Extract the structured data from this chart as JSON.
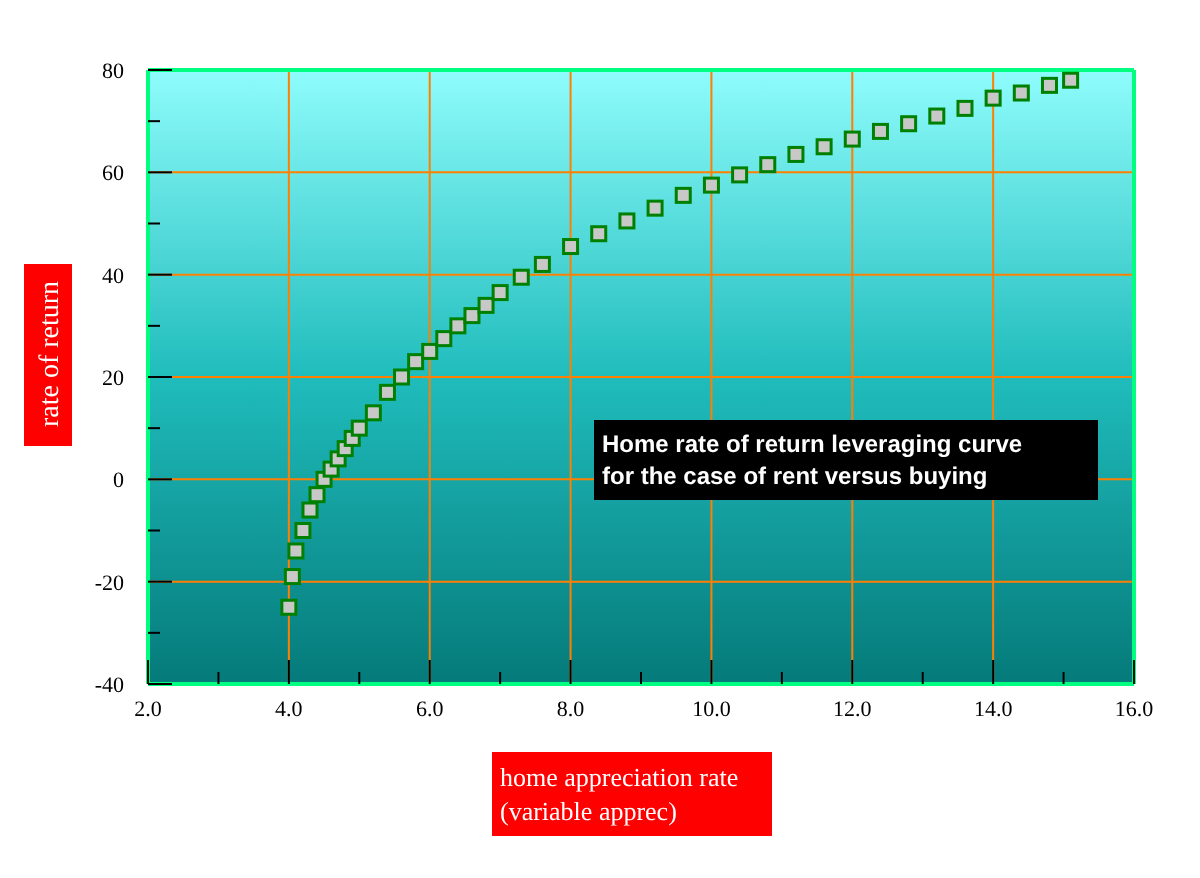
{
  "chart_data": {
    "type": "scatter",
    "xlabel": "home appreciation rate\n(variable apprec)",
    "ylabel": "rate of return",
    "annotations": [
      "Home rate of return leveraging curve\nfor the case of rent versus buying"
    ],
    "x": [
      4.0,
      4.05,
      4.1,
      4.2,
      4.3,
      4.4,
      4.5,
      4.6,
      4.7,
      4.8,
      4.9,
      5.0,
      5.2,
      5.4,
      5.6,
      5.8,
      6.0,
      6.2,
      6.4,
      6.6,
      6.8,
      7.0,
      7.3,
      7.6,
      8.0,
      8.4,
      8.8,
      9.2,
      9.6,
      10.0,
      10.4,
      10.8,
      11.2,
      11.6,
      12.0,
      12.4,
      12.8,
      13.2,
      13.6,
      14.0,
      14.4,
      14.8,
      15.1
    ],
    "series": [
      {
        "color": "#008000",
        "values": [
          -25,
          -19,
          -14,
          -10,
          -6,
          -3,
          0,
          2,
          4,
          6,
          8,
          10,
          13,
          17,
          20,
          23,
          25,
          27.5,
          30,
          32,
          34,
          36.5,
          39.5,
          42,
          45.5,
          48,
          50.5,
          53,
          55.5,
          57.5,
          59.5,
          61.5,
          63.5,
          65,
          66.5,
          68,
          69.5,
          71,
          72.5,
          74.5,
          75.5,
          77,
          78
        ]
      }
    ],
    "marker": "square",
    "grid": true,
    "xlim": [
      2,
      16
    ],
    "xticks": [
      {
        "value": 2,
        "label": "2.0"
      },
      {
        "value": 3,
        "label": null
      },
      {
        "value": 4,
        "label": "4.0"
      },
      {
        "value": 5,
        "label": null
      },
      {
        "value": 6,
        "label": "6.0"
      },
      {
        "value": 7,
        "label": null
      },
      {
        "value": 8,
        "label": "8.0"
      },
      {
        "value": 9,
        "label": null
      },
      {
        "value": 10,
        "label": "10.0"
      },
      {
        "value": 11,
        "label": null
      },
      {
        "value": 12,
        "label": "12.0"
      },
      {
        "value": 13,
        "label": null
      },
      {
        "value": 14,
        "label": "14.0"
      },
      {
        "value": 15,
        "label": null
      },
      {
        "value": 16,
        "label": "16.0"
      }
    ],
    "ylim": [
      -40,
      80
    ],
    "yticks": [
      -40,
      {
        "value": -30,
        "label": null
      },
      -20,
      {
        "value": -10,
        "label": null
      },
      0,
      {
        "value": 10,
        "label": null
      },
      20,
      {
        "value": 30,
        "label": null
      },
      40,
      {
        "value": 50,
        "label": null
      },
      60,
      {
        "value": 70,
        "label": null
      },
      80
    ]
  }
}
